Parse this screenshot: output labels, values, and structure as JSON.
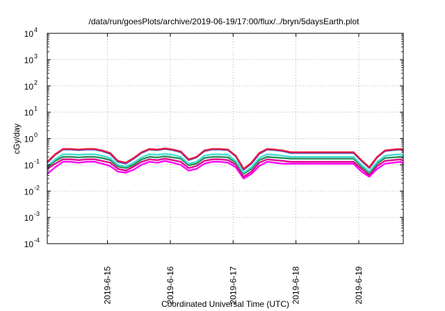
{
  "chart_data": {
    "type": "line",
    "title": "/data/run/goesPlots/archive/2019-06-19/17:00/flux/../bryn/5daysEarth.plot",
    "xlabel": "Coordinated Universal Time (UTC)",
    "ylabel": "cGy/day",
    "x_scale": "time",
    "y_scale": "log",
    "xlim": [
      "2019-06-14T01:00",
      "2019-06-19T17:00"
    ],
    "ylim": [
      0.0001,
      10000
    ],
    "x_ticks": [
      "2019-6-15",
      "2019-6-16",
      "2019-6-17",
      "2019-6-18",
      "2019-6-19"
    ],
    "y_ticks": [
      {
        "base": "10",
        "exp": "-4",
        "value": 0.0001
      },
      {
        "base": "10",
        "exp": "-3",
        "value": 0.001
      },
      {
        "base": "10",
        "exp": "-2",
        "value": 0.01
      },
      {
        "base": "10",
        "exp": "-1",
        "value": 0.1
      },
      {
        "base": "10",
        "exp": "0",
        "value": 1
      },
      {
        "base": "10",
        "exp": "1",
        "value": 10
      },
      {
        "base": "10",
        "exp": "2",
        "value": 100
      },
      {
        "base": "10",
        "exp": "3",
        "value": 1000
      },
      {
        "base": "10",
        "exp": "4",
        "value": 10000
      }
    ],
    "grid": true,
    "legend": "none",
    "x": [
      "2019-06-14T01:00",
      "2019-06-14T04:00",
      "2019-06-14T07:00",
      "2019-06-14T10:00",
      "2019-06-14T13:00",
      "2019-06-14T16:00",
      "2019-06-14T19:00",
      "2019-06-14T22:00",
      "2019-06-15T01:00",
      "2019-06-15T04:00",
      "2019-06-15T07:00",
      "2019-06-15T10:00",
      "2019-06-15T13:00",
      "2019-06-15T16:00",
      "2019-06-15T19:00",
      "2019-06-15T22:00",
      "2019-06-16T01:00",
      "2019-06-16T04:00",
      "2019-06-16T07:00",
      "2019-06-16T10:00",
      "2019-06-16T13:00",
      "2019-06-16T16:00",
      "2019-06-16T19:00",
      "2019-06-16T22:00",
      "2019-06-17T01:00",
      "2019-06-17T04:00",
      "2019-06-17T07:00",
      "2019-06-17T10:00",
      "2019-06-17T13:00",
      "2019-06-17T16:00",
      "2019-06-17T19:00",
      "2019-06-17T22:00",
      "2019-06-18T01:00",
      "2019-06-18T04:00",
      "2019-06-18T07:00",
      "2019-06-18T10:00",
      "2019-06-18T13:00",
      "2019-06-18T16:00",
      "2019-06-18T19:00",
      "2019-06-18T22:00",
      "2019-06-19T01:00",
      "2019-06-19T04:00",
      "2019-06-19T07:00",
      "2019-06-19T10:00",
      "2019-06-19T13:00",
      "2019-06-19T16:00",
      "2019-06-19T17:00"
    ],
    "series": [
      {
        "color": "#e8193c",
        "values": [
          0.13,
          0.25,
          0.4,
          0.4,
          0.38,
          0.4,
          0.4,
          0.35,
          0.28,
          0.14,
          0.12,
          0.18,
          0.3,
          0.4,
          0.38,
          0.42,
          0.38,
          0.32,
          0.16,
          0.2,
          0.35,
          0.4,
          0.4,
          0.38,
          0.22,
          0.07,
          0.12,
          0.28,
          0.4,
          0.38,
          0.35,
          0.3,
          0.3,
          0.3,
          0.3,
          0.3,
          0.3,
          0.3,
          0.3,
          0.3,
          0.15,
          0.08,
          0.2,
          0.35,
          0.38,
          0.4,
          0.35
        ]
      },
      {
        "color": "#3b5bdb",
        "values": [
          0.12,
          0.24,
          0.38,
          0.38,
          0.36,
          0.38,
          0.38,
          0.33,
          0.26,
          0.13,
          0.11,
          0.17,
          0.28,
          0.38,
          0.36,
          0.4,
          0.36,
          0.3,
          0.15,
          0.19,
          0.33,
          0.38,
          0.38,
          0.36,
          0.21,
          0.065,
          0.11,
          0.26,
          0.38,
          0.36,
          0.33,
          0.28,
          0.28,
          0.28,
          0.28,
          0.28,
          0.28,
          0.28,
          0.28,
          0.28,
          0.14,
          0.075,
          0.19,
          0.33,
          0.36,
          0.38,
          0.33
        ]
      },
      {
        "color": "#40e0d0",
        "values": [
          0.09,
          0.16,
          0.25,
          0.25,
          0.24,
          0.25,
          0.25,
          0.22,
          0.18,
          0.1,
          0.085,
          0.12,
          0.19,
          0.25,
          0.24,
          0.26,
          0.24,
          0.2,
          0.11,
          0.13,
          0.22,
          0.25,
          0.25,
          0.24,
          0.14,
          0.05,
          0.08,
          0.18,
          0.25,
          0.24,
          0.22,
          0.2,
          0.2,
          0.2,
          0.2,
          0.2,
          0.2,
          0.2,
          0.2,
          0.2,
          0.1,
          0.055,
          0.13,
          0.22,
          0.24,
          0.25,
          0.22
        ]
      },
      {
        "color": "#2e8b57",
        "values": [
          0.08,
          0.14,
          0.2,
          0.2,
          0.19,
          0.2,
          0.2,
          0.18,
          0.15,
          0.085,
          0.075,
          0.1,
          0.16,
          0.2,
          0.19,
          0.21,
          0.19,
          0.17,
          0.095,
          0.11,
          0.18,
          0.2,
          0.2,
          0.19,
          0.12,
          0.045,
          0.07,
          0.15,
          0.2,
          0.19,
          0.18,
          0.17,
          0.17,
          0.17,
          0.17,
          0.17,
          0.17,
          0.17,
          0.17,
          0.17,
          0.085,
          0.048,
          0.11,
          0.18,
          0.19,
          0.2,
          0.18
        ]
      },
      {
        "color": "#e3008c",
        "values": [
          0.07,
          0.11,
          0.16,
          0.16,
          0.15,
          0.16,
          0.16,
          0.14,
          0.12,
          0.07,
          0.06,
          0.085,
          0.13,
          0.16,
          0.15,
          0.17,
          0.15,
          0.13,
          0.075,
          0.09,
          0.14,
          0.16,
          0.16,
          0.15,
          0.1,
          0.035,
          0.055,
          0.12,
          0.16,
          0.15,
          0.14,
          0.13,
          0.13,
          0.13,
          0.13,
          0.13,
          0.13,
          0.13,
          0.13,
          0.13,
          0.07,
          0.04,
          0.09,
          0.14,
          0.15,
          0.16,
          0.14
        ]
      },
      {
        "color": "#ff00ff",
        "values": [
          0.045,
          0.08,
          0.13,
          0.13,
          0.12,
          0.13,
          0.13,
          0.11,
          0.09,
          0.055,
          0.05,
          0.065,
          0.1,
          0.13,
          0.12,
          0.14,
          0.12,
          0.1,
          0.06,
          0.07,
          0.11,
          0.13,
          0.13,
          0.12,
          0.08,
          0.03,
          0.045,
          0.09,
          0.13,
          0.12,
          0.11,
          0.11,
          0.11,
          0.11,
          0.11,
          0.11,
          0.11,
          0.11,
          0.11,
          0.11,
          0.055,
          0.035,
          0.07,
          0.11,
          0.12,
          0.13,
          0.11
        ]
      }
    ]
  }
}
